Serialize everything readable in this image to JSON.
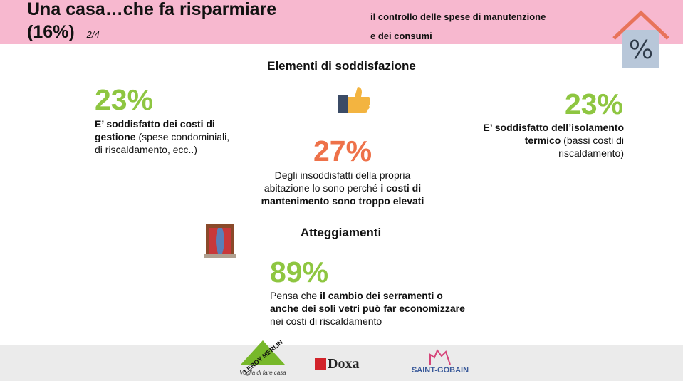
{
  "header": {
    "title": [
      "Una casa…che fa risparmiare",
      "(16%)"
    ],
    "page": "2/4",
    "subtitle": [
      "il controllo delle spese di manutenzione",
      "e dei consumi"
    ]
  },
  "satisfaction": {
    "heading": "Elementi di soddisfazione",
    "items": [
      {
        "percent": "23%",
        "text": [
          "E’ soddisfatto dei costi di gestione",
          " (spese condominiali, di riscaldamento, ecc..)"
        ]
      },
      {
        "percent": "27%",
        "text": [
          "Degli insoddisfatti della propria abitazione lo sono perché ",
          "i costi di mantenimento sono troppo elevati"
        ]
      },
      {
        "percent": "23%",
        "text": [
          "E’ soddisfatto dell’isolamento termico",
          " (bassi costi di riscaldamento)"
        ]
      }
    ]
  },
  "attitudes": {
    "heading": "Atteggiamenti",
    "percent": "89%",
    "text": [
      "Pensa che ",
      "il cambio dei serramenti o anche dei soli vetri può far economizzare",
      " nei costi di riscaldamento"
    ]
  },
  "footer": {
    "logos": [
      "LEROY MERLIN",
      "Voglia di fare casa",
      "Doxa",
      "SAINT-GOBAIN"
    ]
  }
}
